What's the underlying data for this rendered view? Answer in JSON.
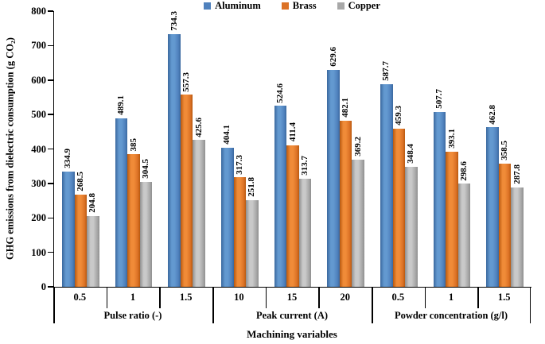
{
  "chart_data": {
    "type": "bar",
    "title": "",
    "ylabel": "GHG emissions from dielectric consumption (g CO₂)",
    "xlabel": "Machining variables",
    "ylim": [
      0,
      800
    ],
    "ytick_interval": 100,
    "grid": false,
    "legend_position": "top-center",
    "group_axis": [
      {
        "label": "Pulse ratio (-)",
        "categories": [
          "0.5",
          "1",
          "1.5"
        ]
      },
      {
        "label": "Peak current (A)",
        "categories": [
          "10",
          "15",
          "20"
        ]
      },
      {
        "label": "Powder concentration (g/l)",
        "categories": [
          "0.5",
          "1",
          "1.5"
        ]
      }
    ],
    "series": [
      {
        "name": "Aluminum",
        "color": "#4F81BD",
        "color_light": "#6399D0",
        "color_dark": "#3A689E",
        "values": [
          334.9,
          489.1,
          734.3,
          404.1,
          524.6,
          629.6,
          587.7,
          507.7,
          462.8
        ],
        "labels": [
          "334.9",
          "489.1",
          "734.3",
          "404.1",
          "524.6",
          "629.6",
          "587.7",
          "507.7",
          "462.8"
        ]
      },
      {
        "name": "Brass",
        "color": "#DC7226",
        "color_light": "#F08B38",
        "color_dark": "#B8590F",
        "values": [
          268.5,
          385,
          557.3,
          317.3,
          411.4,
          482.1,
          459.3,
          393.1,
          358.5
        ],
        "labels": [
          "268.5",
          "385",
          "557.3",
          "317.3",
          "411.4",
          "482.1",
          "459.3",
          "393.1",
          "358.5"
        ]
      },
      {
        "name": "Copper",
        "color": "#A8A8A8",
        "color_light": "#C9C9C9",
        "color_dark": "#8F8F8F",
        "values": [
          204.8,
          304.5,
          425.6,
          251.8,
          313.7,
          369.2,
          348.4,
          298.6,
          287.8
        ],
        "labels": [
          "204.8",
          "304.5",
          "425.6",
          "251.8",
          "313.7",
          "369.2",
          "348.4",
          "298.6",
          "287.8"
        ]
      }
    ],
    "axis_color": "#000000",
    "text_color": "#000000"
  }
}
